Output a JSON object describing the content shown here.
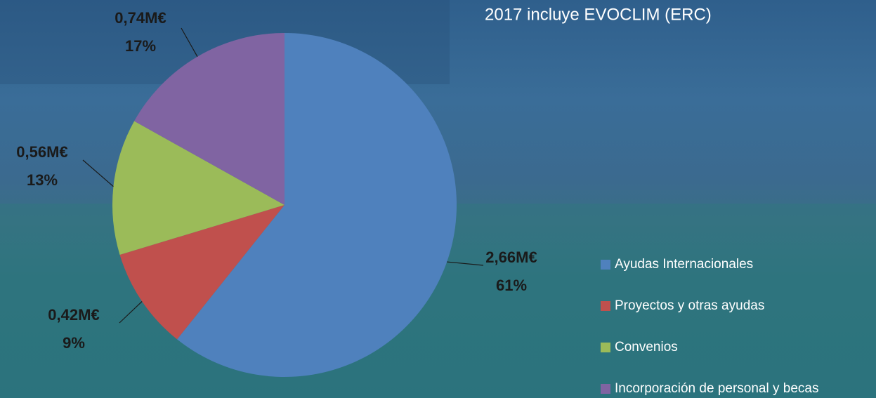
{
  "chart_data": {
    "type": "pie",
    "title": "2017 incluye EVOCLIM (ERC)",
    "categories": [
      "Ayudas Internacionales",
      "Proyectos y otras ayudas",
      "Convenios",
      "Incorporación de personal y becas"
    ],
    "values": [
      2.66,
      0.42,
      0.56,
      0.74
    ],
    "value_labels": [
      "2,66M€",
      "0,42M€",
      "0,56M€",
      "0,74M€"
    ],
    "percentages": [
      61,
      9,
      13,
      17
    ],
    "percentage_labels": [
      "61%",
      "9%",
      "13%",
      "17%"
    ],
    "colors": [
      "#4f81bd",
      "#c0504d",
      "#9bbb59",
      "#8064a2"
    ],
    "legend": "right"
  }
}
